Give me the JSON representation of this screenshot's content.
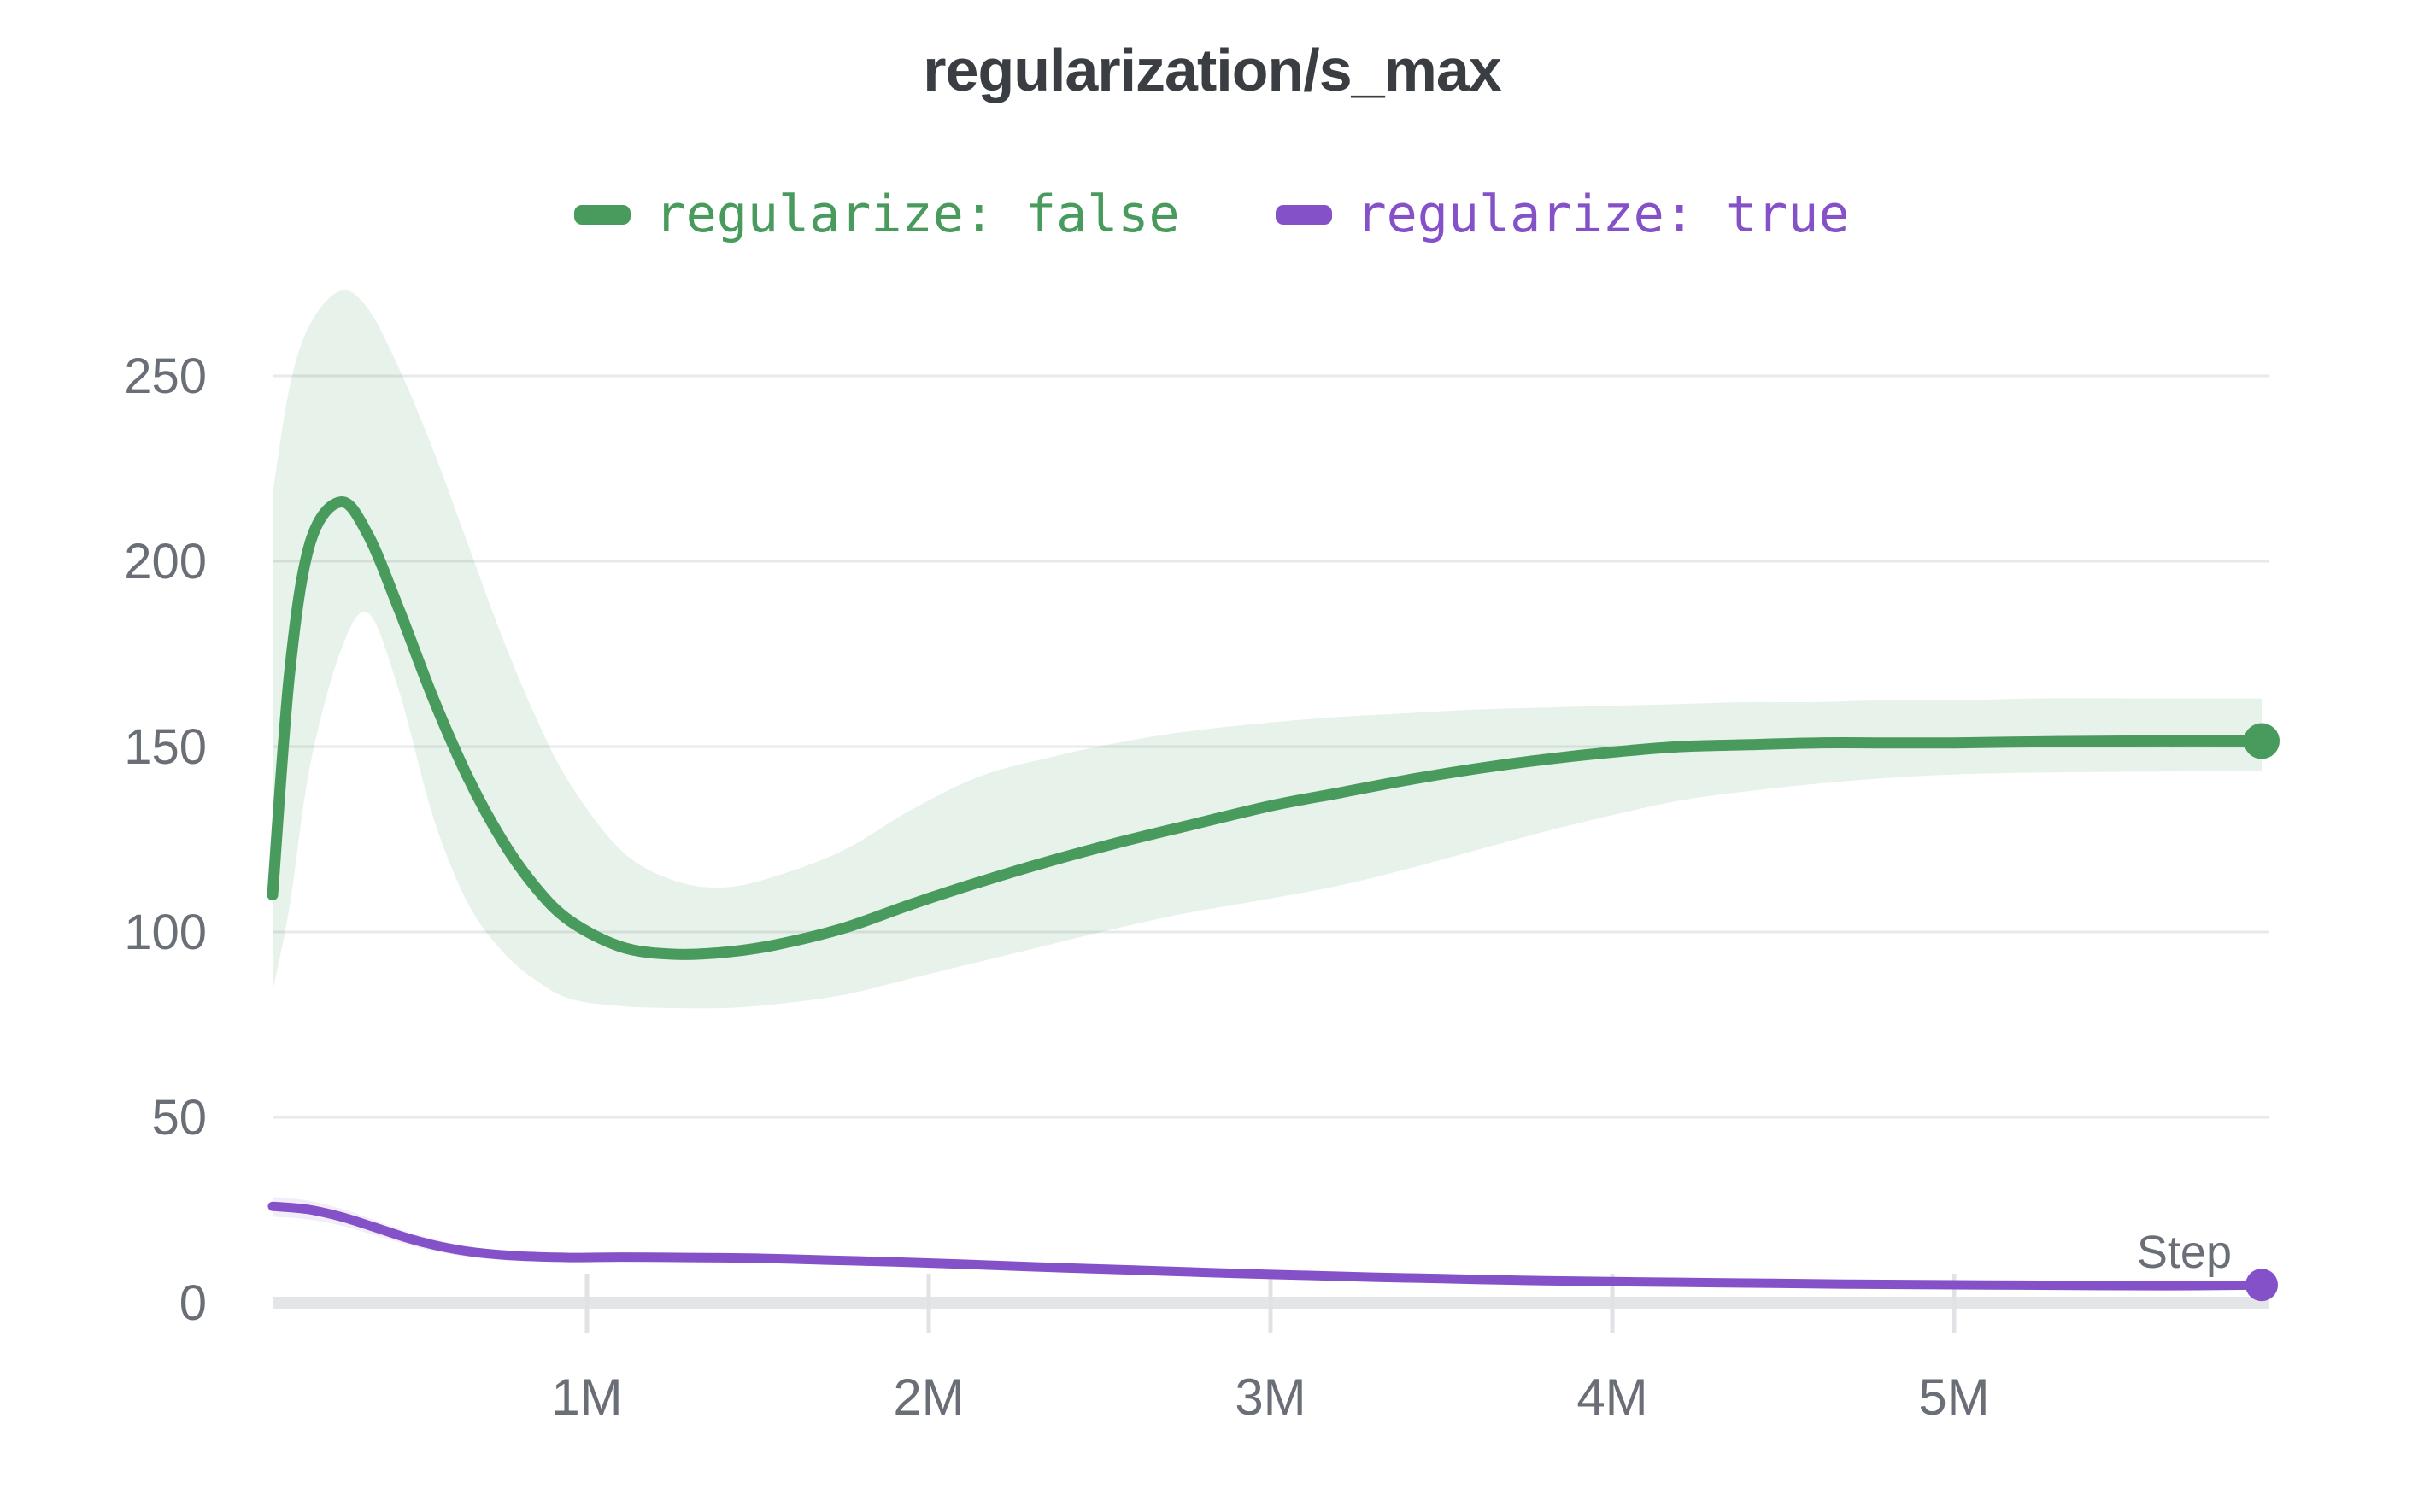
{
  "title": "regularization/s_max",
  "legend": [
    {
      "label": "regularize: false",
      "color": "#489b5c"
    },
    {
      "label": "regularize: true",
      "color": "#8551c8"
    }
  ],
  "axis": {
    "x_label": "Step",
    "x_tick_labels": [
      "1M",
      "2M",
      "3M",
      "4M",
      "5M"
    ],
    "y_tick_labels": [
      "0",
      "50",
      "100",
      "150",
      "200",
      "250"
    ]
  },
  "colors": {
    "title_text": "#3a3d42",
    "axis_text": "#6a6e76",
    "gridline": "#e8e9eb",
    "baseline": "#e4e5e8",
    "tick_mark": "#e1e2e6",
    "green_line": "#489b5c",
    "green_band": "rgba(72,155,92,0.13)",
    "purple_line": "#8551c8",
    "purple_band": "rgba(133,81,200,0.10)",
    "background": "#ffffff"
  },
  "chart_data": {
    "type": "line",
    "title": "regularization/s_max",
    "xlabel": "Step",
    "ylabel": "",
    "x_units": "millions of steps",
    "xlim": [
      0.05,
      5.97
    ],
    "ylim": [
      0,
      275
    ],
    "grid": "horizontal",
    "legend_position": "top-center",
    "x_ticks": [
      1,
      2,
      3,
      4,
      5
    ],
    "y_ticks": [
      0,
      50,
      100,
      150,
      200,
      250
    ],
    "series": [
      {
        "name": "regularize: false",
        "color": "#489b5c",
        "band_color": "rgba(72,155,92,0.13)",
        "line_width": 13,
        "end_dot_radius": 21,
        "x": [
          0.08,
          0.13,
          0.19,
          0.28,
          0.36,
          0.45,
          0.55,
          0.65,
          0.75,
          0.85,
          0.95,
          1.1,
          1.25,
          1.4,
          1.55,
          1.75,
          1.95,
          2.15,
          2.35,
          2.55,
          2.75,
          3.0,
          3.2,
          3.4,
          3.6,
          3.8,
          4.0,
          4.2,
          4.4,
          4.6,
          4.8,
          5.0,
          5.25,
          5.5,
          5.9
        ],
        "y": [
          110,
          170,
          205,
          216,
          207,
          187,
          163,
          142,
          125,
          112,
          103,
          96,
          94,
          94.5,
          96.5,
          101,
          107.5,
          113.5,
          119,
          124,
          128.5,
          134,
          137.5,
          141,
          144,
          146.5,
          148.5,
          150,
          150.5,
          151,
          151,
          151,
          151.3,
          151.5,
          151.5
        ],
        "band_top": [
          218,
          247,
          264,
          273,
          268,
          252,
          230,
          205,
          180,
          158,
          140,
          122,
          114,
          112,
          115,
          122,
          133,
          142,
          147,
          151,
          154,
          156.5,
          158,
          159,
          160,
          160.5,
          161,
          161.5,
          162,
          162,
          162.5,
          162.5,
          163,
          163,
          163
        ],
        "band_bottom": [
          84,
          107,
          145,
          176,
          186,
          165,
          131,
          108,
          95,
          87,
          82,
          80,
          79.5,
          79.5,
          80.5,
          83,
          87.5,
          92,
          96.5,
          101,
          105,
          109,
          112.5,
          117,
          122,
          127,
          131.5,
          135.5,
          138,
          140,
          141.5,
          142.5,
          143,
          143.2,
          143.5
        ]
      },
      {
        "name": "regularize: true",
        "color": "#8551c8",
        "band_color": "rgba(133,81,200,0.10)",
        "line_width": 11,
        "end_dot_radius": 19,
        "x": [
          0.08,
          0.18,
          0.28,
          0.38,
          0.48,
          0.58,
          0.68,
          0.8,
          0.95,
          1.1,
          1.3,
          1.5,
          1.7,
          1.9,
          2.1,
          2.3,
          2.5,
          2.7,
          2.9,
          3.1,
          3.3,
          3.5,
          3.7,
          3.9,
          4.1,
          4.3,
          4.5,
          4.7,
          4.9,
          5.1,
          5.3,
          5.5,
          5.7,
          5.9
        ],
        "y": [
          26,
          25.2,
          23.2,
          20.3,
          17.3,
          15.0,
          13.5,
          12.6,
          12.2,
          12.3,
          12.2,
          12.0,
          11.5,
          11.0,
          10.4,
          9.7,
          9.1,
          8.5,
          7.9,
          7.4,
          6.9,
          6.5,
          6.1,
          5.8,
          5.6,
          5.4,
          5.2,
          5.0,
          4.9,
          4.8,
          4.7,
          4.6,
          4.6,
          4.8
        ],
        "band_top": [
          28.5,
          27.6,
          25.4,
          22.2,
          19.0,
          16.5,
          14.8,
          13.8,
          13.3,
          13.3,
          13.1,
          12.9,
          12.4,
          11.9,
          11.2,
          10.5,
          9.9,
          9.2,
          8.6,
          8.1,
          7.6,
          7.1,
          6.7,
          6.4,
          6.2,
          6.0,
          5.8,
          5.6,
          5.5,
          5.4,
          5.3,
          5.2,
          5.2,
          5.4
        ],
        "band_bottom": [
          23.2,
          22.5,
          20.8,
          18.2,
          15.5,
          13.4,
          12.1,
          11.3,
          11.0,
          11.2,
          11.2,
          11.0,
          10.6,
          10.1,
          9.5,
          8.9,
          8.3,
          7.7,
          7.2,
          6.7,
          6.2,
          5.9,
          5.5,
          5.2,
          5.0,
          4.8,
          4.6,
          4.4,
          4.3,
          4.2,
          4.1,
          4.0,
          4.0,
          4.2
        ]
      }
    ]
  }
}
